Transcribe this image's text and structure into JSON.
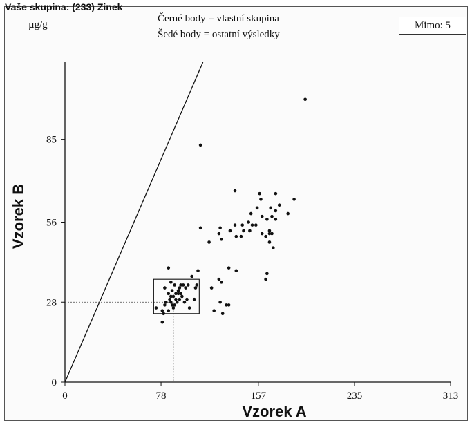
{
  "header": {
    "title": "Vaše skupina: (233) Zinek"
  },
  "outside_box": {
    "label": "Mimo: 5"
  },
  "chart_data": {
    "type": "scatter",
    "unit_label": "µg/g",
    "legend": [
      "Černé body = vlastní skupina",
      "Šedé body = ostatní výsledky"
    ],
    "xlabel": "Vzorek A",
    "ylabel": "Vzorek B",
    "xlim": [
      0,
      313
    ],
    "ylim": [
      0,
      112
    ],
    "x_ticks": [
      0,
      78,
      157,
      235,
      313
    ],
    "y_ticks": [
      0,
      28,
      56,
      85
    ],
    "reference": {
      "x": 88,
      "y": 28
    },
    "group_box": {
      "x": [
        72,
        109
      ],
      "y": [
        24,
        36
      ]
    },
    "diagonal": true,
    "points": [
      [
        195,
        99
      ],
      [
        110,
        83
      ],
      [
        138,
        67
      ],
      [
        158,
        66
      ],
      [
        171,
        66
      ],
      [
        159,
        64
      ],
      [
        174,
        62
      ],
      [
        186,
        64
      ],
      [
        156,
        61
      ],
      [
        167,
        61
      ],
      [
        171,
        60
      ],
      [
        151,
        59
      ],
      [
        160,
        58
      ],
      [
        168,
        58
      ],
      [
        181,
        59
      ],
      [
        164,
        57
      ],
      [
        171,
        57
      ],
      [
        149,
        56
      ],
      [
        138,
        55
      ],
      [
        144,
        55
      ],
      [
        152,
        55
      ],
      [
        155,
        55
      ],
      [
        110,
        54
      ],
      [
        126,
        54
      ],
      [
        134,
        53
      ],
      [
        145,
        53
      ],
      [
        150,
        53
      ],
      [
        160,
        52
      ],
      [
        166,
        53
      ],
      [
        125,
        52
      ],
      [
        139,
        51
      ],
      [
        127,
        50
      ],
      [
        163,
        51
      ],
      [
        166,
        52
      ],
      [
        168,
        52
      ],
      [
        143,
        51
      ],
      [
        117,
        49
      ],
      [
        166,
        49
      ],
      [
        169,
        47
      ],
      [
        108,
        39
      ],
      [
        133,
        40
      ],
      [
        139,
        39
      ],
      [
        84,
        40
      ],
      [
        164,
        38
      ],
      [
        163,
        36
      ],
      [
        103,
        37
      ],
      [
        125,
        36
      ],
      [
        127,
        35
      ],
      [
        86,
        35
      ],
      [
        94,
        34
      ],
      [
        96,
        34
      ],
      [
        89,
        34
      ],
      [
        100,
        34
      ],
      [
        81,
        33
      ],
      [
        93,
        33
      ],
      [
        92,
        31
      ],
      [
        98,
        33
      ],
      [
        87,
        32
      ],
      [
        84,
        31
      ],
      [
        119,
        33
      ],
      [
        106,
        33
      ],
      [
        107,
        34
      ],
      [
        90,
        31
      ],
      [
        88,
        30
      ],
      [
        85,
        29
      ],
      [
        95,
        30
      ],
      [
        90,
        29
      ],
      [
        93,
        29
      ],
      [
        97,
        28
      ],
      [
        99,
        29
      ],
      [
        82,
        28
      ],
      [
        86,
        28
      ],
      [
        89,
        27
      ],
      [
        81,
        27
      ],
      [
        105,
        29
      ],
      [
        88,
        26
      ],
      [
        84,
        25
      ],
      [
        74,
        26
      ],
      [
        79,
        25
      ],
      [
        80,
        24
      ],
      [
        101,
        26
      ],
      [
        126,
        28
      ],
      [
        131,
        27
      ],
      [
        128,
        24
      ],
      [
        121,
        25
      ],
      [
        133,
        27
      ],
      [
        79,
        21
      ],
      [
        87,
        27
      ],
      [
        91,
        28
      ],
      [
        86,
        30
      ],
      [
        92,
        32
      ],
      [
        94,
        31
      ]
    ]
  }
}
